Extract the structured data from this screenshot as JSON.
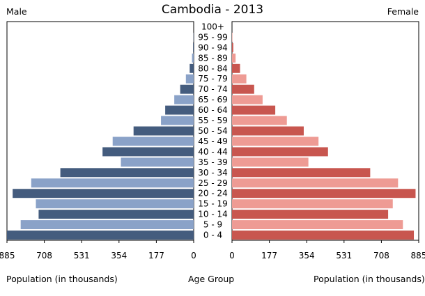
{
  "chart_data": {
    "type": "bar",
    "title": "Cambodia - 2013",
    "left_label": "Male",
    "right_label": "Female",
    "xlabel_left": "Population (in thousands)",
    "xlabel_center": "Age Group",
    "xlabel_right": "Population (in thousands)",
    "categories": [
      "0 - 4",
      "5 - 9",
      "10 - 14",
      "15 - 19",
      "20 - 24",
      "25 - 29",
      "30 - 34",
      "35 - 39",
      "40 - 44",
      "45 - 49",
      "50 - 54",
      "55 - 59",
      "60 - 64",
      "65 - 69",
      "70 - 74",
      "75 - 79",
      "80 - 84",
      "85 - 89",
      "90 - 94",
      "95 - 99",
      "100+"
    ],
    "ticks": [
      "885",
      "708",
      "531",
      "354",
      "177",
      "0"
    ],
    "xlim": [
      0,
      885
    ],
    "series": [
      {
        "name": "Male",
        "values": [
          885,
          820,
          735,
          748,
          858,
          770,
          632,
          345,
          432,
          384,
          285,
          155,
          135,
          92,
          64,
          37,
          19,
          8,
          3,
          1,
          0
        ]
      },
      {
        "name": "Female",
        "values": [
          862,
          810,
          740,
          762,
          870,
          787,
          655,
          362,
          455,
          410,
          340,
          260,
          205,
          145,
          105,
          68,
          38,
          17,
          6,
          2,
          0
        ]
      }
    ],
    "colors": {
      "male_dark": "#445c7e",
      "male_light": "#8aa2c8",
      "female_dark": "#c8564f",
      "female_light": "#ee9b94"
    }
  }
}
